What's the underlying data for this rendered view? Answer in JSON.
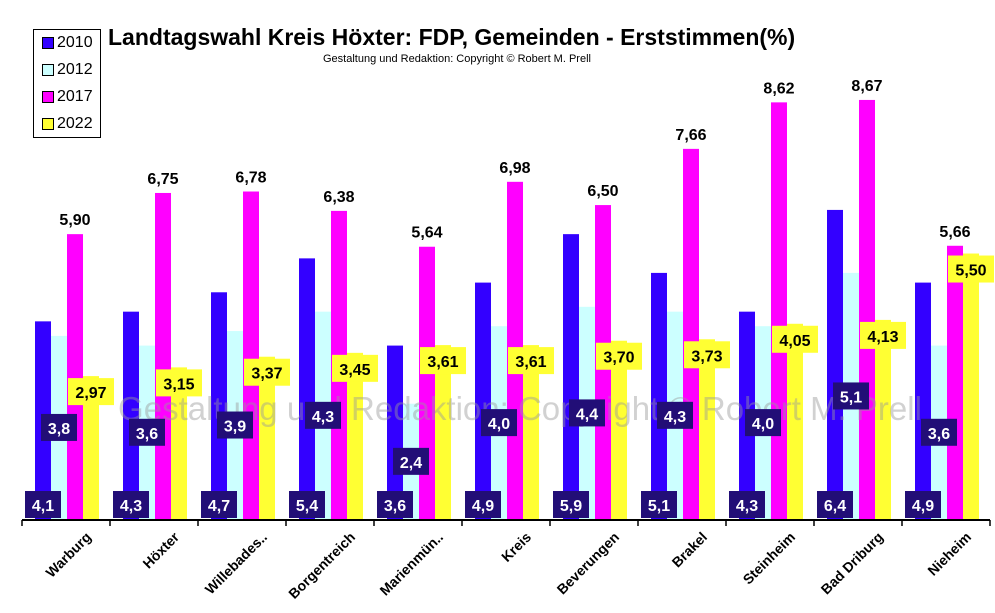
{
  "chart_data": {
    "type": "bar",
    "title": "Landtagswahl Kreis Höxter: FDP, Gemeinden - Erststimmen(%)",
    "subtitle": "Gestaltung und Redaktion: Copyright © Robert M. Prell",
    "watermark": "Gestaltung und Redaktion: Copyright © Robert M. Prell",
    "categories": [
      "Warburg",
      "Höxter",
      "Willebades..",
      "Borgentreich",
      "Marienmün..",
      "Kreis",
      "Beverungen",
      "Brakel",
      "Steinheim",
      "Bad Driburg",
      "Nieheim"
    ],
    "series": [
      {
        "name": "2010",
        "color": "#3300ff",
        "values": [
          4.1,
          4.3,
          4.7,
          5.4,
          3.6,
          4.9,
          5.9,
          5.1,
          4.3,
          6.4,
          4.9
        ],
        "labels": [
          "4,1",
          "4,3",
          "4,7",
          "5,4",
          "3,6",
          "4,9",
          "5,9",
          "5,1",
          "4,3",
          "6,4",
          "4,9"
        ]
      },
      {
        "name": "2012",
        "color": "#ccffff",
        "values": [
          3.8,
          3.6,
          3.9,
          4.3,
          2.4,
          4.0,
          4.4,
          4.3,
          4.0,
          5.1,
          3.6
        ],
        "labels": [
          "3,8",
          "3,6",
          "3,9",
          "4,3",
          "2,4",
          "4,0",
          "4,4",
          "4,3",
          "4,0",
          "5,1",
          "3,6"
        ]
      },
      {
        "name": "2017",
        "color": "#ff00ff",
        "values": [
          5.9,
          6.75,
          6.78,
          6.38,
          5.64,
          6.98,
          6.5,
          7.66,
          8.62,
          8.67,
          5.66
        ],
        "labels": [
          "5,90",
          "6,75",
          "6,78",
          "6,38",
          "5,64",
          "6,98",
          "6,50",
          "7,66",
          "8,62",
          "8,67",
          "5,66"
        ]
      },
      {
        "name": "2022",
        "color": "#ffff33",
        "values": [
          2.97,
          3.15,
          3.37,
          3.45,
          3.61,
          3.61,
          3.7,
          3.73,
          4.05,
          4.13,
          5.5
        ],
        "labels": [
          "2,97",
          "3,15",
          "3,37",
          "3,45",
          "3,61",
          "3,61",
          "3,70",
          "3,73",
          "4,05",
          "4,13",
          "5,50"
        ]
      }
    ],
    "ylim": [
      0,
      9.5
    ],
    "grid": false,
    "legend": "top-left"
  }
}
